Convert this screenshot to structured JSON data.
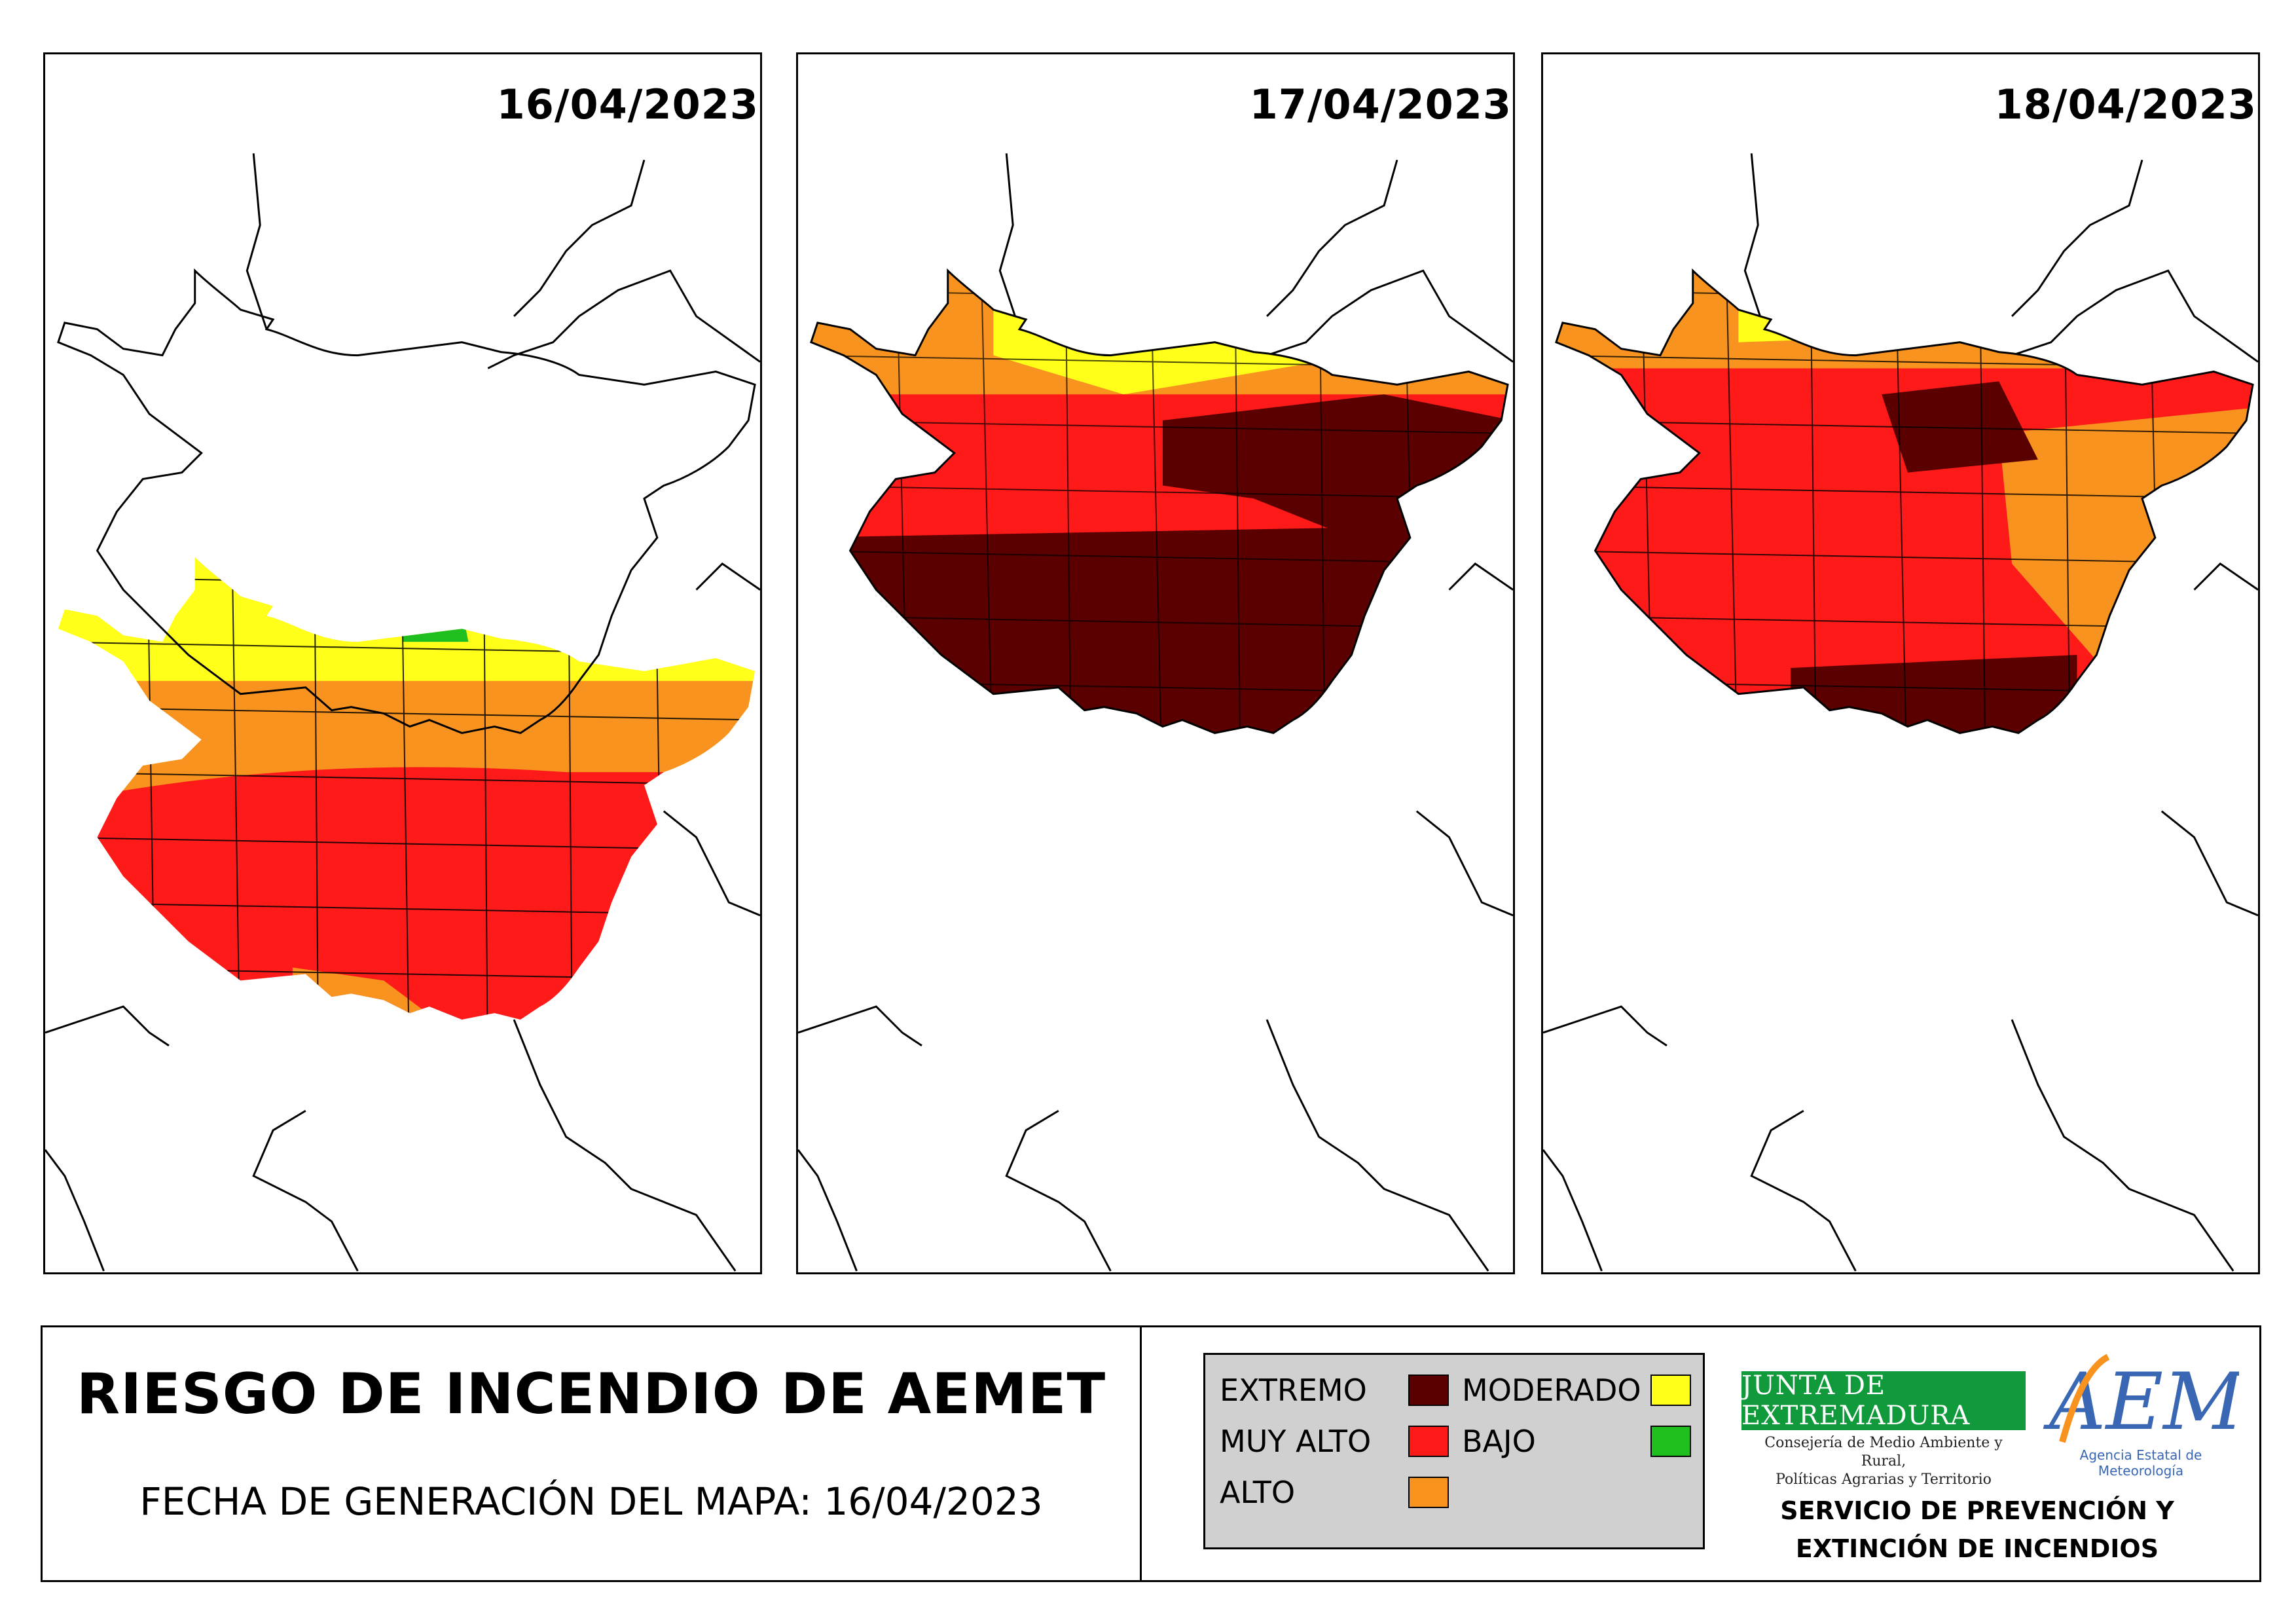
{
  "panels": [
    {
      "date": "16/04/2023"
    },
    {
      "date": "17/04/2023"
    },
    {
      "date": "18/04/2023"
    }
  ],
  "footer": {
    "title": "RIESGO DE INCENDIO DE AEMET",
    "generation_date": "FECHA DE GENERACIÓN DEL MAPA: 16/04/2023"
  },
  "legend": {
    "items": [
      {
        "label": "EXTREMO",
        "color": "#5a0000"
      },
      {
        "label": "MUY ALTO",
        "color": "#ff1a1a"
      },
      {
        "label": "ALTO",
        "color": "#f7931e"
      },
      {
        "label": "MODERADO",
        "color": "#ffff1a"
      },
      {
        "label": "BAJO",
        "color": "#1fbf1f"
      }
    ]
  },
  "logos": {
    "junta_name": "JUNTA DE EXTREMADURA",
    "junta_subtitle_1": "Consejería de Medio Ambiente y Rural,",
    "junta_subtitle_2": "Políticas Agrarias y Territorio",
    "aemet_wordmark": "AEMet",
    "aemet_subtitle": "Agencia Estatal de Meteorología"
  },
  "service": {
    "line1": "SERVICIO DE PREVENCIÓN Y",
    "line2": "EXTINCIÓN DE INCENDIOS"
  }
}
